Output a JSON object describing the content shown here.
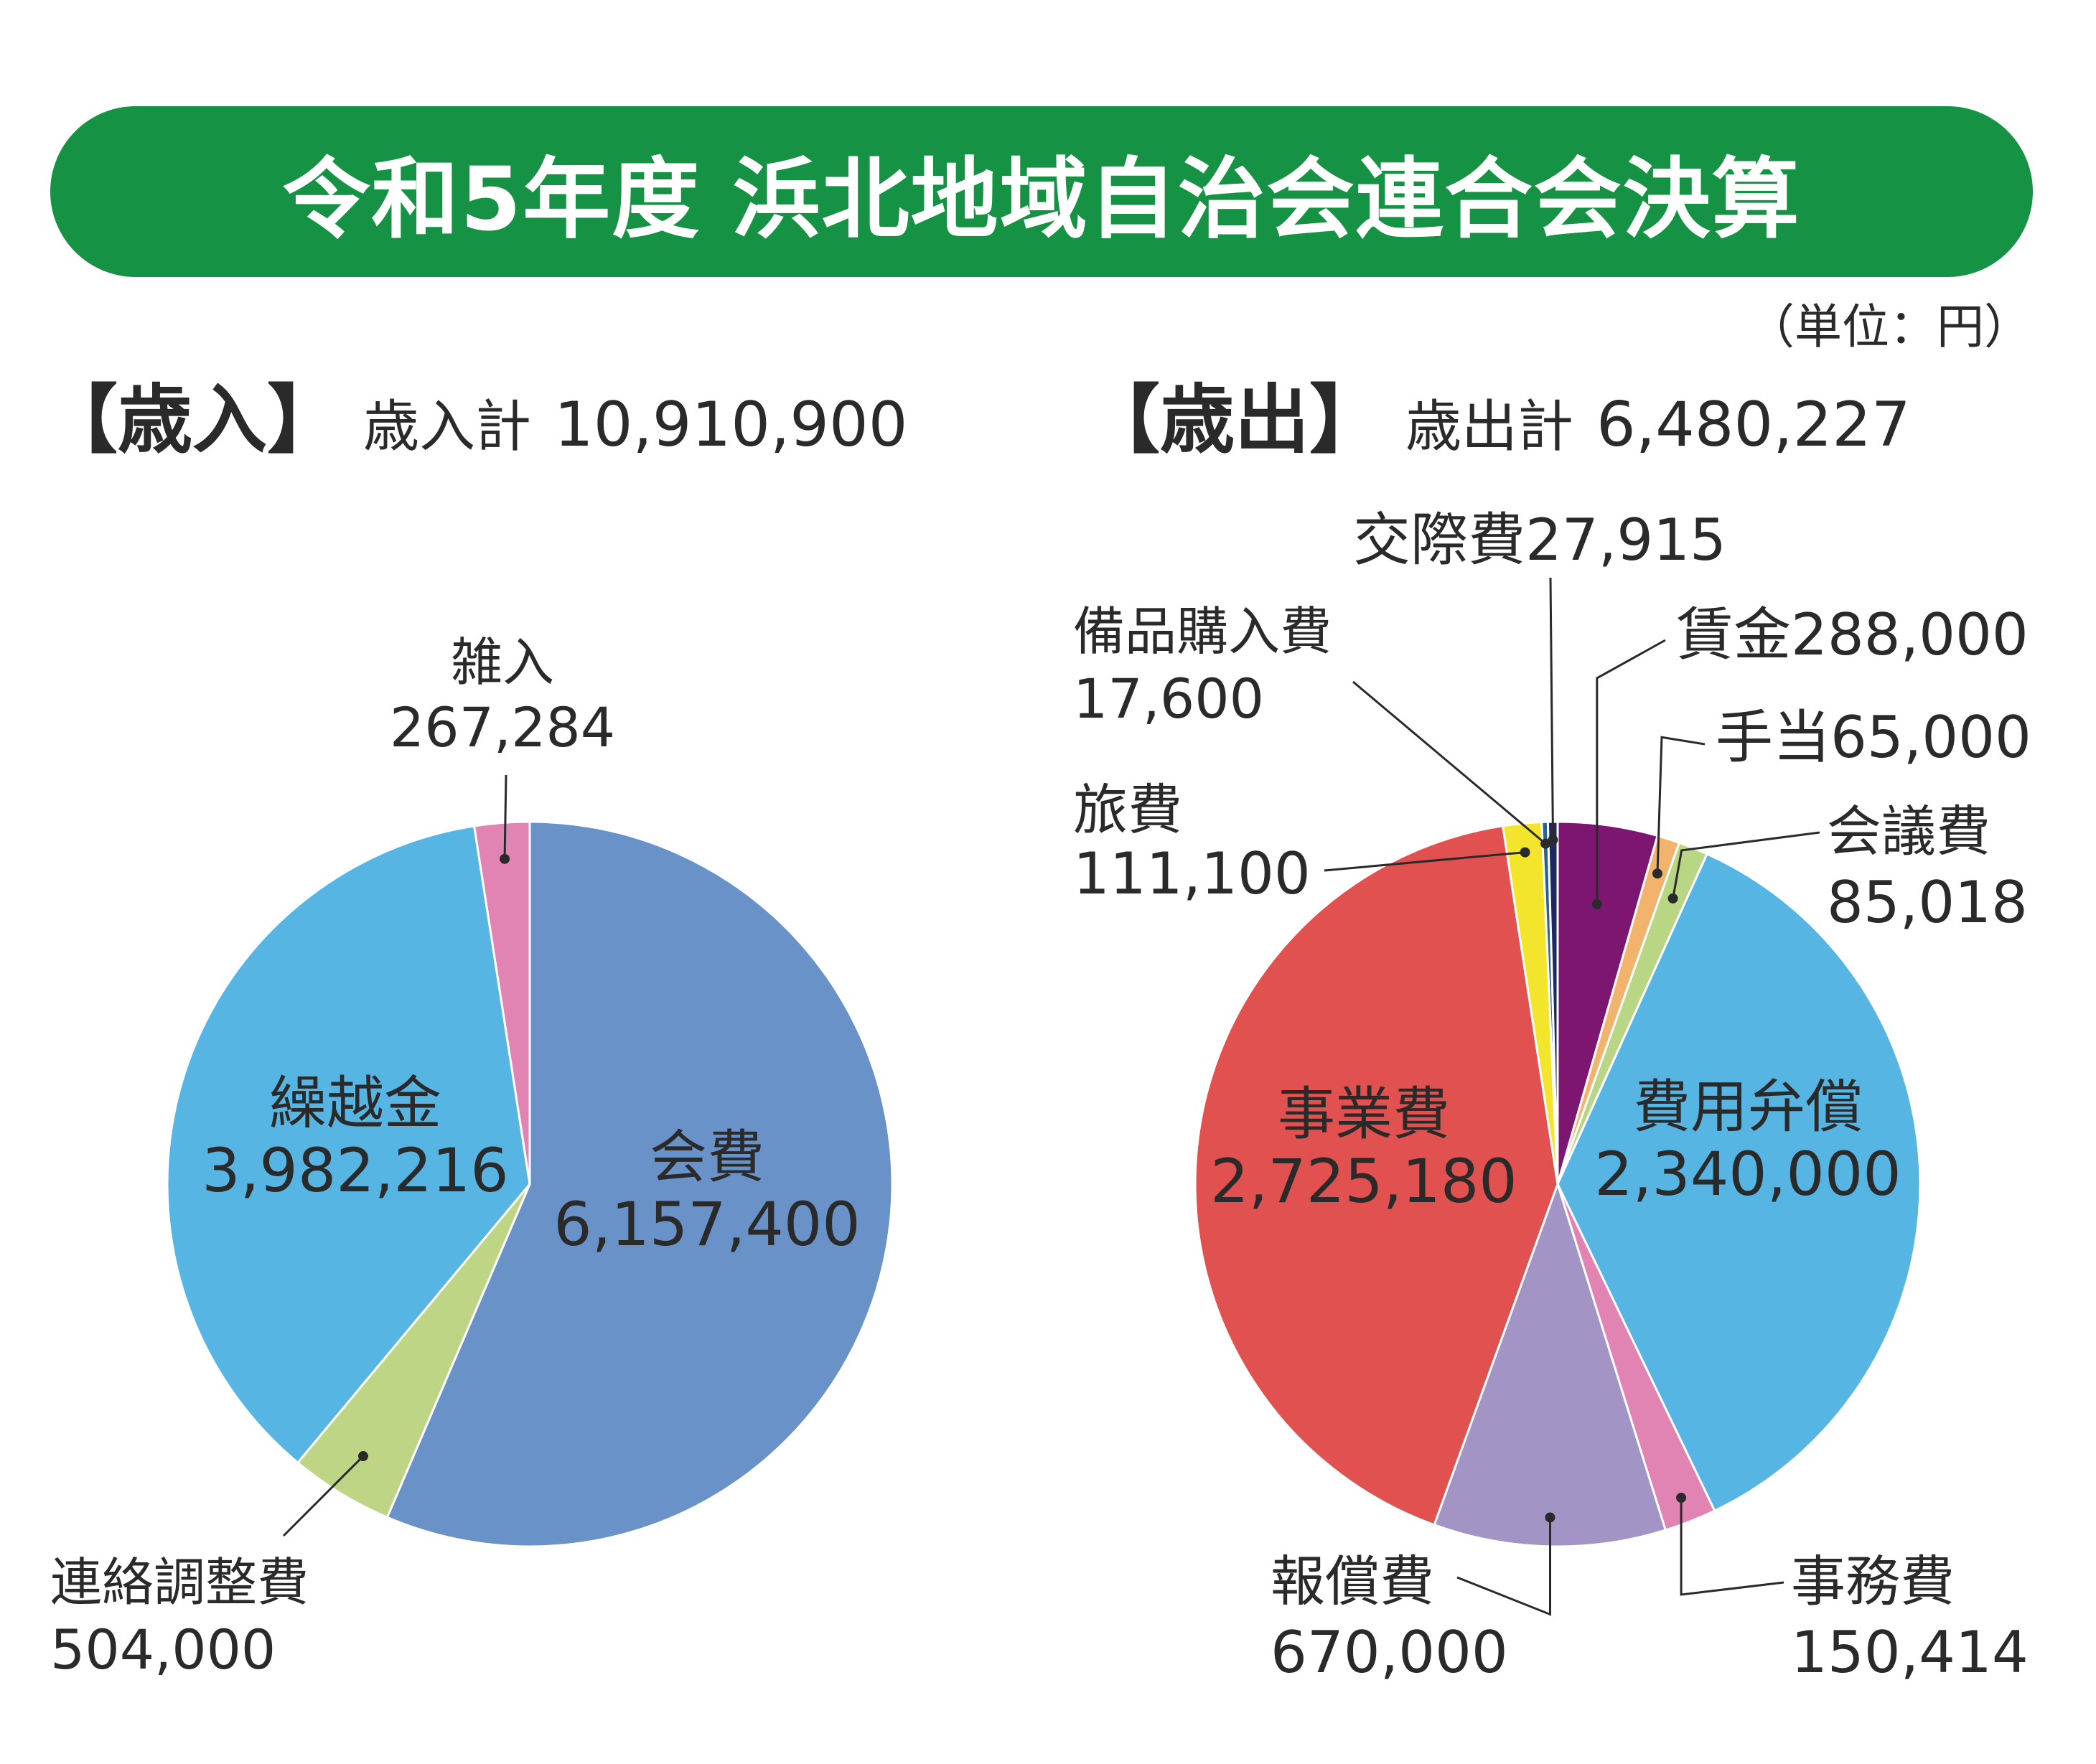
{
  "title": "令和5年度 浜北地域自治会連合会決算",
  "unit_note": "（単位：円）",
  "revenue": {
    "heading": "【歳入】",
    "total_label": "歳入計",
    "total_value": "10,910,900"
  },
  "expense": {
    "heading": "【歳出】",
    "total_label": "歳出計",
    "total_value": "6,480,227"
  },
  "colors": {
    "banner": "#159244",
    "会費": "#6992c9",
    "連絡調整費": "#bdd585",
    "繰越金": "#56b5e3",
    "雑入": "#e184b4",
    "賃金": "#7c1671",
    "手当": "#f2b46d",
    "会議費": "#b8d683",
    "費用弁償": "#56b5e3",
    "事務費": "#e184b4",
    "報償費": "#a294c4",
    "事業費": "#e05150",
    "旅費": "#f2e52c",
    "備品購入費": "#2c6191",
    "交際費": "#1c2a60"
  },
  "chart_data": [
    {
      "type": "pie",
      "title": "【歳入】",
      "start": "12 o'clock, clockwise",
      "slices": [
        {
          "label": "会費",
          "value": 6157400,
          "value_text": "6,157,400"
        },
        {
          "label": "連絡調整費",
          "value": 504000,
          "value_text": "504,000"
        },
        {
          "label": "繰越金",
          "value": 3982216,
          "value_text": "3,982,216"
        },
        {
          "label": "雑入",
          "value": 267284,
          "value_text": "267,284"
        }
      ]
    },
    {
      "type": "pie",
      "title": "【歳出】",
      "start": "12 o'clock, clockwise",
      "slices": [
        {
          "label": "賃金",
          "value": 288000,
          "value_text": "288,000"
        },
        {
          "label": "手当",
          "value": 65000,
          "value_text": "65,000"
        },
        {
          "label": "会議費",
          "value": 85018,
          "value_text": "85,018"
        },
        {
          "label": "費用弁償",
          "value": 2340000,
          "value_text": "2,340,000"
        },
        {
          "label": "事務費",
          "value": 150414,
          "value_text": "150,414"
        },
        {
          "label": "報償費",
          "value": 670000,
          "value_text": "670,000"
        },
        {
          "label": "事業費",
          "value": 2725180,
          "value_text": "2,725,180"
        },
        {
          "label": "旅費",
          "value": 111100,
          "value_text": "111,100"
        },
        {
          "label": "備品購入費",
          "value": 17600,
          "value_text": "17,600"
        },
        {
          "label": "交際費",
          "value": 27915,
          "value_text": "27,915"
        }
      ]
    }
  ]
}
